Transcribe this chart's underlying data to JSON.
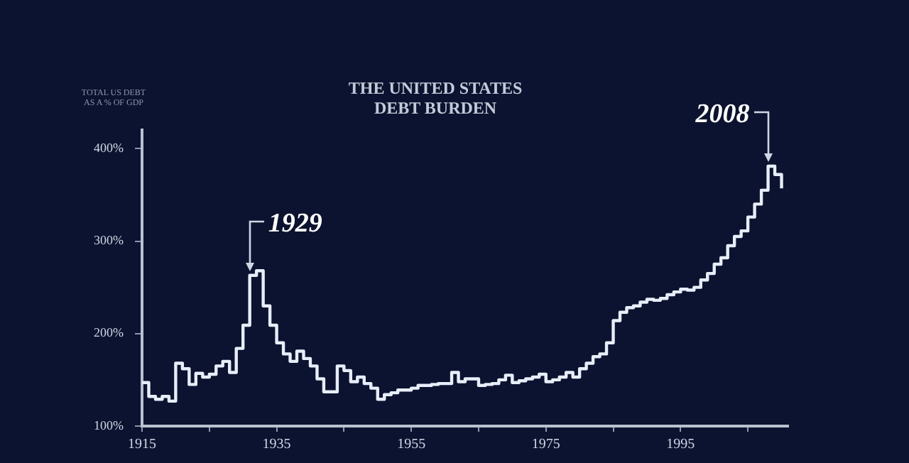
{
  "chart_data": {
    "type": "step",
    "title": "THE UNITED STATES\nDEBT BURDEN",
    "ylabel": "TOTAL US DEBT\nAS A % OF GDP",
    "x": [
      1915,
      1916,
      1917,
      1918,
      1919,
      1920,
      1921,
      1922,
      1923,
      1924,
      1925,
      1926,
      1927,
      1928,
      1929,
      1930,
      1931,
      1932,
      1933,
      1934,
      1935,
      1936,
      1937,
      1938,
      1939,
      1940,
      1941,
      1942,
      1943,
      1944,
      1945,
      1946,
      1947,
      1948,
      1949,
      1950,
      1951,
      1952,
      1953,
      1954,
      1955,
      1956,
      1957,
      1958,
      1959,
      1960,
      1961,
      1962,
      1963,
      1964,
      1965,
      1966,
      1967,
      1968,
      1969,
      1970,
      1971,
      1972,
      1973,
      1974,
      1975,
      1976,
      1977,
      1978,
      1979,
      1980,
      1981,
      1982,
      1983,
      1984,
      1985,
      1986,
      1987,
      1988,
      1989,
      1990,
      1991,
      1992,
      1993,
      1994,
      1995,
      1996,
      1997,
      1998,
      1999,
      2000,
      2001,
      2002,
      2003,
      2004,
      2005,
      2006,
      2007,
      2008,
      2009,
      2010
    ],
    "series": [
      {
        "color": "#e8eef8",
        "values": [
          147,
          132,
          129,
          132,
          127,
          168,
          162,
          145,
          157,
          153,
          156,
          165,
          170,
          158,
          184,
          209,
          263,
          268,
          230,
          209,
          190,
          178,
          170,
          181,
          173,
          165,
          151,
          137,
          137,
          165,
          160,
          148,
          153,
          146,
          141,
          129,
          134,
          136,
          139,
          139,
          141,
          144,
          144,
          145,
          146,
          146,
          158,
          148,
          151,
          151,
          144,
          145,
          146,
          150,
          155,
          147,
          149,
          151,
          153,
          156,
          148,
          150,
          153,
          158,
          153,
          162,
          168,
          175,
          178,
          190,
          214,
          223,
          228,
          230,
          234,
          237,
          236,
          238,
          242,
          245,
          248,
          247,
          250,
          258,
          265,
          275,
          282,
          295,
          305,
          311,
          326,
          340,
          355,
          381,
          372,
          357
        ]
      }
    ],
    "xlim": [
      1915,
      2011
    ],
    "xticks": [
      {
        "value": 1915,
        "label": "1915"
      },
      {
        "value": 1925,
        "label": null
      },
      {
        "value": 1935,
        "label": "1935"
      },
      {
        "value": 1945,
        "label": null
      },
      {
        "value": 1955,
        "label": "1955"
      },
      {
        "value": 1965,
        "label": null
      },
      {
        "value": 1975,
        "label": "1975"
      },
      {
        "value": 1985,
        "label": null
      },
      {
        "value": 1995,
        "label": "1995"
      },
      {
        "value": 2005,
        "label": null
      }
    ],
    "ylim": [
      100,
      420
    ],
    "yticks": [
      {
        "value": 100,
        "label": "100%"
      },
      {
        "value": 200,
        "label": "200%"
      },
      {
        "value": 300,
        "label": "300%"
      },
      {
        "value": 400,
        "label": "400%"
      }
    ],
    "annotations": [
      {
        "text": "1929",
        "x": 1931,
        "y": 263
      },
      {
        "text": "2008",
        "x": 2008,
        "y": 381
      }
    ],
    "grid": false,
    "legend": false,
    "marker": "none",
    "line_style": "solid"
  }
}
